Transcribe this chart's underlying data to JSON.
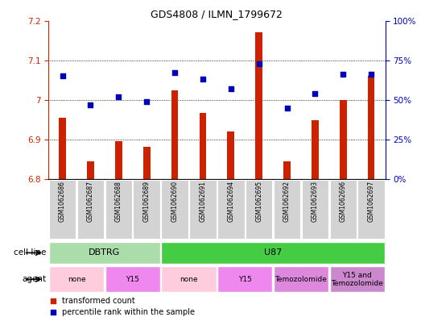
{
  "title": "GDS4808 / ILMN_1799672",
  "samples": [
    "GSM1062686",
    "GSM1062687",
    "GSM1062688",
    "GSM1062689",
    "GSM1062690",
    "GSM1062691",
    "GSM1062694",
    "GSM1062695",
    "GSM1062692",
    "GSM1062693",
    "GSM1062696",
    "GSM1062697"
  ],
  "transformed_count": [
    6.955,
    6.845,
    6.895,
    6.882,
    7.025,
    6.968,
    6.92,
    7.17,
    6.845,
    6.948,
    7.0,
    7.06
  ],
  "percentile_rank": [
    65,
    47,
    52,
    49,
    67,
    63,
    57,
    73,
    45,
    54,
    66,
    66
  ],
  "ylim_left": [
    6.8,
    7.2
  ],
  "ylim_right": [
    0,
    100
  ],
  "yticks_left": [
    6.8,
    6.9,
    7.0,
    7.1,
    7.2
  ],
  "yticks_right": [
    0,
    25,
    50,
    75,
    100
  ],
  "bar_color": "#cc2200",
  "dot_color": "#0000bb",
  "bar_width": 0.25,
  "cell_line_groups": [
    {
      "label": "DBTRG",
      "start": 0,
      "end": 3,
      "color": "#aaddaa"
    },
    {
      "label": "U87",
      "start": 4,
      "end": 11,
      "color": "#44cc44"
    }
  ],
  "agent_groups": [
    {
      "label": "none",
      "start": 0,
      "end": 1,
      "color": "#ffccdd"
    },
    {
      "label": "Y15",
      "start": 2,
      "end": 3,
      "color": "#ee88ee"
    },
    {
      "label": "none",
      "start": 4,
      "end": 5,
      "color": "#ffccdd"
    },
    {
      "label": "Y15",
      "start": 6,
      "end": 7,
      "color": "#ee88ee"
    },
    {
      "label": "Temozolomide",
      "start": 8,
      "end": 9,
      "color": "#dd88dd"
    },
    {
      "label": "Y15 and\nTemozolomide",
      "start": 10,
      "end": 11,
      "color": "#cc88cc"
    }
  ],
  "legend_items": [
    {
      "label": "transformed count",
      "color": "#cc2200"
    },
    {
      "label": "percentile rank within the sample",
      "color": "#0000bb"
    }
  ]
}
